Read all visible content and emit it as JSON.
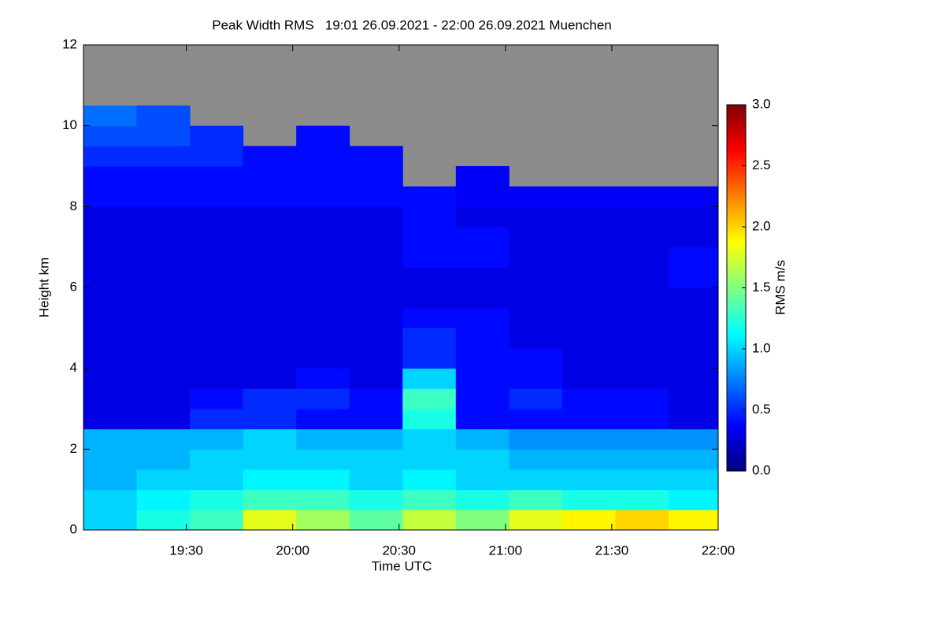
{
  "chart_data": {
    "type": "heatmap",
    "title": "Peak Width RMS   19:01 26.09.2021 - 22:00 26.09.2021 Muenchen",
    "xlabel": "Time UTC",
    "ylabel": "Height km",
    "colorbar_label": "RMS m/s",
    "colormap": "jet",
    "missing_color": "#8c8c8c",
    "x": [
      1148.5,
      1163.5,
      1178.5,
      1193.5,
      1208.5,
      1223.5,
      1238.5,
      1253.5,
      1268.5,
      1283.5,
      1298.5,
      1313.5
    ],
    "y": [
      0.25,
      0.75,
      1.25,
      1.75,
      2.25,
      2.75,
      3.25,
      3.75,
      4.25,
      4.75,
      5.25,
      5.75,
      6.25,
      6.75,
      7.25,
      7.75,
      8.25,
      8.75,
      9.25,
      9.75,
      10.25,
      10.75,
      11.25,
      11.75
    ],
    "z": [
      [
        1.0,
        1.2,
        1.3,
        1.8,
        1.6,
        1.4,
        1.7,
        1.5,
        1.8,
        1.9,
        2.0,
        1.9
      ],
      [
        1.0,
        1.1,
        1.2,
        1.3,
        1.3,
        1.2,
        1.3,
        1.2,
        1.3,
        1.2,
        1.2,
        1.1
      ],
      [
        0.9,
        1.0,
        1.0,
        1.1,
        1.1,
        1.0,
        1.1,
        1.0,
        1.0,
        1.0,
        1.0,
        1.0
      ],
      [
        0.9,
        0.9,
        1.0,
        1.0,
        1.0,
        1.0,
        1.0,
        1.0,
        0.9,
        0.9,
        0.9,
        0.9
      ],
      [
        0.9,
        0.9,
        0.9,
        1.0,
        0.9,
        0.9,
        1.0,
        0.9,
        0.8,
        0.8,
        0.8,
        0.8
      ],
      [
        0.3,
        0.3,
        0.5,
        0.5,
        0.4,
        0.4,
        1.2,
        0.4,
        0.4,
        0.4,
        0.4,
        0.3
      ],
      [
        0.3,
        0.3,
        0.4,
        0.5,
        0.5,
        0.4,
        1.3,
        0.4,
        0.5,
        0.4,
        0.4,
        0.3
      ],
      [
        0.3,
        0.3,
        0.3,
        0.3,
        0.4,
        0.3,
        1.0,
        0.4,
        0.4,
        0.3,
        0.3,
        0.3
      ],
      [
        0.3,
        0.3,
        0.3,
        0.3,
        0.3,
        0.3,
        0.5,
        0.4,
        0.4,
        0.3,
        0.3,
        0.3
      ],
      [
        0.3,
        0.3,
        0.3,
        0.3,
        0.3,
        0.3,
        0.5,
        0.4,
        0.3,
        0.3,
        0.3,
        0.3
      ],
      [
        0.3,
        0.3,
        0.3,
        0.3,
        0.3,
        0.3,
        0.4,
        0.4,
        0.3,
        0.3,
        0.3,
        0.3
      ],
      [
        0.3,
        0.3,
        0.3,
        0.3,
        0.3,
        0.3,
        0.3,
        0.3,
        0.3,
        0.3,
        0.3,
        0.3
      ],
      [
        0.3,
        0.3,
        0.3,
        0.3,
        0.3,
        0.3,
        0.3,
        0.3,
        0.3,
        0.3,
        0.3,
        0.4
      ],
      [
        0.3,
        0.3,
        0.3,
        0.3,
        0.3,
        0.3,
        0.4,
        0.4,
        0.3,
        0.3,
        0.3,
        0.4
      ],
      [
        0.3,
        0.3,
        0.3,
        0.3,
        0.3,
        0.3,
        0.4,
        0.4,
        0.3,
        0.3,
        0.3,
        0.3
      ],
      [
        0.3,
        0.3,
        0.3,
        0.3,
        0.3,
        0.3,
        0.4,
        0.3,
        0.3,
        0.3,
        0.3,
        0.3
      ],
      [
        0.4,
        0.4,
        0.4,
        0.4,
        0.4,
        0.4,
        0.4,
        0.35,
        0.35,
        0.35,
        0.35,
        0.35
      ],
      [
        0.4,
        0.4,
        0.4,
        0.4,
        0.4,
        0.4,
        null,
        0.35,
        null,
        null,
        null,
        null
      ],
      [
        0.5,
        0.5,
        0.5,
        0.4,
        0.4,
        0.4,
        null,
        null,
        null,
        null,
        null,
        null
      ],
      [
        0.6,
        0.6,
        0.5,
        null,
        0.4,
        null,
        null,
        null,
        null,
        null,
        null,
        null
      ],
      [
        0.7,
        0.6,
        null,
        null,
        null,
        null,
        null,
        null,
        null,
        null,
        null,
        null
      ],
      [
        null,
        null,
        null,
        null,
        null,
        null,
        null,
        null,
        null,
        null,
        null,
        null
      ],
      [
        null,
        null,
        null,
        null,
        null,
        null,
        null,
        null,
        null,
        null,
        null,
        null
      ],
      [
        null,
        null,
        null,
        null,
        null,
        null,
        null,
        null,
        null,
        null,
        null,
        null
      ]
    ],
    "xlim": [
      1141,
      1320
    ],
    "xticks": [
      {
        "value": 1170,
        "label": "19:30"
      },
      {
        "value": 1200,
        "label": "20:00"
      },
      {
        "value": 1230,
        "label": "20:30"
      },
      {
        "value": 1260,
        "label": "21:00"
      },
      {
        "value": 1290,
        "label": "21:30"
      },
      {
        "value": 1320,
        "label": "22:00"
      }
    ],
    "ylim": [
      0,
      12
    ],
    "yticks": [
      0,
      2,
      4,
      6,
      8,
      10,
      12
    ],
    "zlim": [
      0,
      3
    ],
    "zticks": [
      {
        "value": 0,
        "label": "0.0"
      },
      {
        "value": 0.5,
        "label": "0.5"
      },
      {
        "value": 1,
        "label": "1.0"
      },
      {
        "value": 1.5,
        "label": "1.5"
      },
      {
        "value": 2,
        "label": "2.0"
      },
      {
        "value": 2.5,
        "label": "2.5"
      },
      {
        "value": 3,
        "label": "3.0"
      }
    ]
  }
}
